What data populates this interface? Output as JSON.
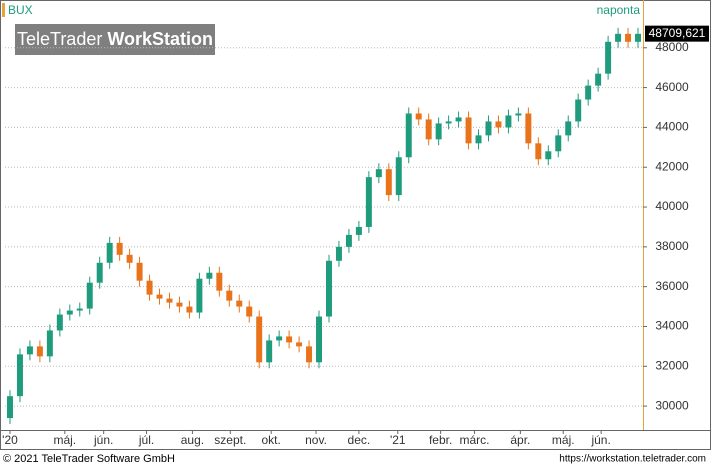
{
  "chart_data": {
    "type": "candlestick",
    "title": "BUX",
    "subtitle": "naponta",
    "watermark": [
      "TeleTrader",
      "WorkStation"
    ],
    "footer_left": "© 2021 TeleTrader Software GmbH",
    "footer_right": "https://workstation.teletrader.com",
    "last_price": {
      "value": 48709.621,
      "label": "48709,621"
    },
    "up_color": "#1f9b7e",
    "down_color": "#e8731a",
    "grid": true,
    "xlim": [
      0,
      64
    ],
    "ylim": [
      28800,
      50400
    ],
    "yticks": [
      30000,
      32000,
      34000,
      36000,
      38000,
      40000,
      42000,
      44000,
      46000,
      48000
    ],
    "xticks": [
      {
        "value": 0.5,
        "label": "'20"
      },
      {
        "value": 6,
        "label": "máj."
      },
      {
        "value": 9.9,
        "label": "jún."
      },
      {
        "value": 14.2,
        "label": "júl."
      },
      {
        "value": 18.8,
        "label": "aug."
      },
      {
        "value": 22.6,
        "label": "szept."
      },
      {
        "value": 26.7,
        "label": "okt."
      },
      {
        "value": 31.2,
        "label": "nov."
      },
      {
        "value": 35.5,
        "label": "dec."
      },
      {
        "value": 39.4,
        "label": "'21"
      },
      {
        "value": 43.7,
        "label": "febr."
      },
      {
        "value": 47.1,
        "label": "márc."
      },
      {
        "value": 51.7,
        "label": "ápr."
      },
      {
        "value": 56,
        "label": "máj."
      },
      {
        "value": 59.8,
        "label": "jún."
      }
    ],
    "open": [
      29400,
      30500,
      32600,
      33000,
      32500,
      33800,
      34600,
      34800,
      34900,
      36200,
      37200,
      38200,
      37600,
      37200,
      36300,
      35600,
      35400,
      35200,
      35000,
      34700,
      36400,
      36700,
      35800,
      35300,
      35000,
      34500,
      32200,
      33300,
      33500,
      33200,
      33000,
      32200,
      34500,
      37300,
      38000,
      38600,
      39000,
      41500,
      41900,
      40600,
      42500,
      44700,
      44400,
      43400,
      44200,
      44300,
      44500,
      43200,
      43600,
      44300,
      44000,
      44600,
      44700,
      43200,
      42400,
      42800,
      43600,
      44300,
      45400,
      46100,
      46700,
      48300,
      48700,
      48300
    ],
    "close": [
      30500,
      32600,
      33000,
      32500,
      33800,
      34600,
      34800,
      34900,
      36200,
      37200,
      38200,
      37600,
      37200,
      36300,
      35600,
      35400,
      35200,
      35000,
      34700,
      36400,
      36700,
      35800,
      35300,
      35000,
      34500,
      32200,
      33300,
      33500,
      33200,
      33000,
      32200,
      34500,
      37300,
      38000,
      38600,
      39000,
      41500,
      41900,
      40600,
      42500,
      44700,
      44400,
      43400,
      44200,
      44300,
      44500,
      43200,
      43600,
      44300,
      44000,
      44600,
      44700,
      43200,
      42400,
      42800,
      43600,
      44300,
      45400,
      46100,
      46700,
      48300,
      48700,
      48300,
      48700
    ],
    "high": [
      30800,
      32900,
      33300,
      33300,
      34100,
      34900,
      35100,
      35200,
      36500,
      37500,
      38500,
      38500,
      37900,
      37500,
      36600,
      35900,
      35700,
      35500,
      35300,
      36700,
      37000,
      37000,
      36100,
      35600,
      35300,
      34800,
      33600,
      33800,
      33800,
      33500,
      33300,
      34800,
      37600,
      38300,
      38900,
      39300,
      41800,
      42200,
      42200,
      42800,
      45000,
      45000,
      44700,
      44500,
      44600,
      44800,
      44800,
      43900,
      44600,
      44600,
      44900,
      45000,
      45000,
      43500,
      43100,
      43900,
      44600,
      45700,
      46400,
      47000,
      48600,
      49000,
      49000,
      49000
    ],
    "low": [
      29100,
      30200,
      32300,
      32200,
      32200,
      33500,
      34300,
      34500,
      34600,
      35900,
      36900,
      37300,
      36900,
      36000,
      35300,
      35100,
      34900,
      34700,
      34400,
      34400,
      36100,
      35500,
      35000,
      34700,
      34200,
      31900,
      31900,
      33000,
      32900,
      32700,
      31900,
      31900,
      34200,
      37000,
      37700,
      38300,
      38700,
      41200,
      40300,
      40300,
      42200,
      44100,
      43100,
      43100,
      43900,
      44000,
      42900,
      42900,
      43300,
      43700,
      43700,
      44300,
      42900,
      42100,
      42100,
      42500,
      43300,
      44000,
      45100,
      45800,
      46400,
      48000,
      48000,
      48000
    ]
  }
}
